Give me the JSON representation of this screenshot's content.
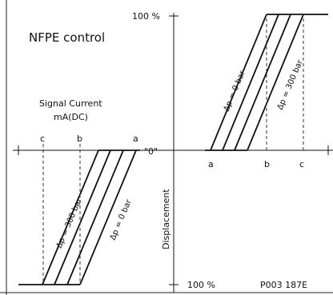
{
  "diagram": {
    "title": "NFPE control",
    "signal_current_label_line1": "Signal Current",
    "signal_current_label_line2": "mA(DC)",
    "top_percent": "100 %",
    "bottom_percent": "100 %",
    "zero_label": "\"0\"",
    "displacement_label": "Displacement",
    "left_marks": {
      "c": "c",
      "b": "b",
      "a": "a"
    },
    "right_marks": {
      "a": "a",
      "b": "b",
      "c": "c"
    },
    "pressure_labels": {
      "upper_dp0": "Δp = 0 bar",
      "upper_dp300": "Δp = 300 bar",
      "lower_dp300": "Δp = 300 bar",
      "lower_dp0": "Δp = 0 bar"
    },
    "ref_code": "P003 187E"
  }
}
